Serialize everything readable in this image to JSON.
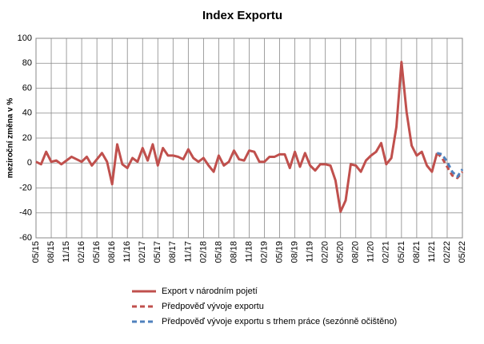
{
  "chart_data": {
    "type": "line",
    "title": "Index Exportu",
    "ylabel": "meziroční změna  v %",
    "categories": [
      "05/15",
      null,
      null,
      "08/15",
      null,
      null,
      "11/15",
      null,
      null,
      "02/16",
      null,
      null,
      "05/16",
      null,
      null,
      "08/16",
      null,
      null,
      "11/16",
      null,
      null,
      "02/17",
      null,
      null,
      "05/17",
      null,
      null,
      "08/17",
      null,
      null,
      "11/17",
      null,
      null,
      "02/18",
      null,
      null,
      "05/18",
      null,
      null,
      "08/18",
      null,
      null,
      "11/18",
      null,
      null,
      "02/19",
      null,
      null,
      "05/19",
      null,
      null,
      "08/19",
      null,
      null,
      "11/19",
      null,
      null,
      "02/20",
      null,
      null,
      "05/20",
      null,
      null,
      "08/20",
      null,
      null,
      "11/20",
      null,
      null,
      "02/21",
      null,
      null,
      "05/21",
      null,
      null,
      "08/21",
      null,
      null,
      "11/21",
      null,
      null,
      "02/22",
      null,
      null,
      "05/22"
    ],
    "series": [
      {
        "name": "Export v národním pojetí",
        "color": "#c0504d",
        "dash": false,
        "values": [
          1,
          -1,
          9,
          1,
          2,
          -1,
          2,
          5,
          3,
          1,
          5,
          -2,
          3,
          8,
          1,
          -17,
          15,
          -1,
          -4,
          4,
          1,
          12,
          2,
          15,
          -2,
          12,
          6,
          6,
          5,
          3,
          11,
          4,
          1,
          4,
          -2,
          -7,
          6,
          -2,
          1,
          10,
          3,
          2,
          10,
          9,
          1,
          1,
          5,
          5,
          7,
          7,
          -4,
          9,
          -3,
          8,
          -2,
          -6,
          -1,
          -1,
          -2,
          -14,
          -39,
          -30,
          -1,
          -2,
          -7,
          2,
          6,
          9,
          16,
          -1,
          4,
          29,
          81,
          41,
          14,
          6,
          9,
          -2,
          -7,
          8,
          null,
          null,
          null,
          null,
          null
        ]
      },
      {
        "name": "Předpověď vývoje exportu",
        "color": "#c0504d",
        "dash": true,
        "values": [
          null,
          null,
          null,
          null,
          null,
          null,
          null,
          null,
          null,
          null,
          null,
          null,
          null,
          null,
          null,
          null,
          null,
          null,
          null,
          null,
          null,
          null,
          null,
          null,
          null,
          null,
          null,
          null,
          null,
          null,
          null,
          null,
          null,
          null,
          null,
          null,
          null,
          null,
          null,
          null,
          null,
          null,
          null,
          null,
          null,
          null,
          null,
          null,
          null,
          null,
          null,
          null,
          null,
          null,
          null,
          null,
          null,
          null,
          null,
          null,
          null,
          null,
          null,
          null,
          null,
          null,
          null,
          null,
          null,
          null,
          null,
          null,
          null,
          null,
          null,
          null,
          null,
          null,
          null,
          8,
          4,
          -3,
          -10,
          -12,
          -7
        ]
      },
      {
        "name": "Předpověď vývoje exportu s trhem práce (sezónně očištěno)",
        "color": "#4f81bd",
        "dash": true,
        "values": [
          null,
          null,
          null,
          null,
          null,
          null,
          null,
          null,
          null,
          null,
          null,
          null,
          null,
          null,
          null,
          null,
          null,
          null,
          null,
          null,
          null,
          null,
          null,
          null,
          null,
          null,
          null,
          null,
          null,
          null,
          null,
          null,
          null,
          null,
          null,
          null,
          null,
          null,
          null,
          null,
          null,
          null,
          null,
          null,
          null,
          null,
          null,
          null,
          null,
          null,
          null,
          null,
          null,
          null,
          null,
          null,
          null,
          null,
          null,
          null,
          null,
          null,
          null,
          null,
          null,
          null,
          null,
          null,
          null,
          null,
          null,
          null,
          null,
          null,
          null,
          null,
          null,
          null,
          null,
          8,
          7,
          1,
          -7,
          -11,
          -5
        ]
      }
    ],
    "ylim": [
      -60,
      100
    ],
    "yticks": [
      -60,
      -40,
      -20,
      0,
      20,
      40,
      60,
      80,
      100
    ],
    "grid": true,
    "legend": "bottom"
  }
}
